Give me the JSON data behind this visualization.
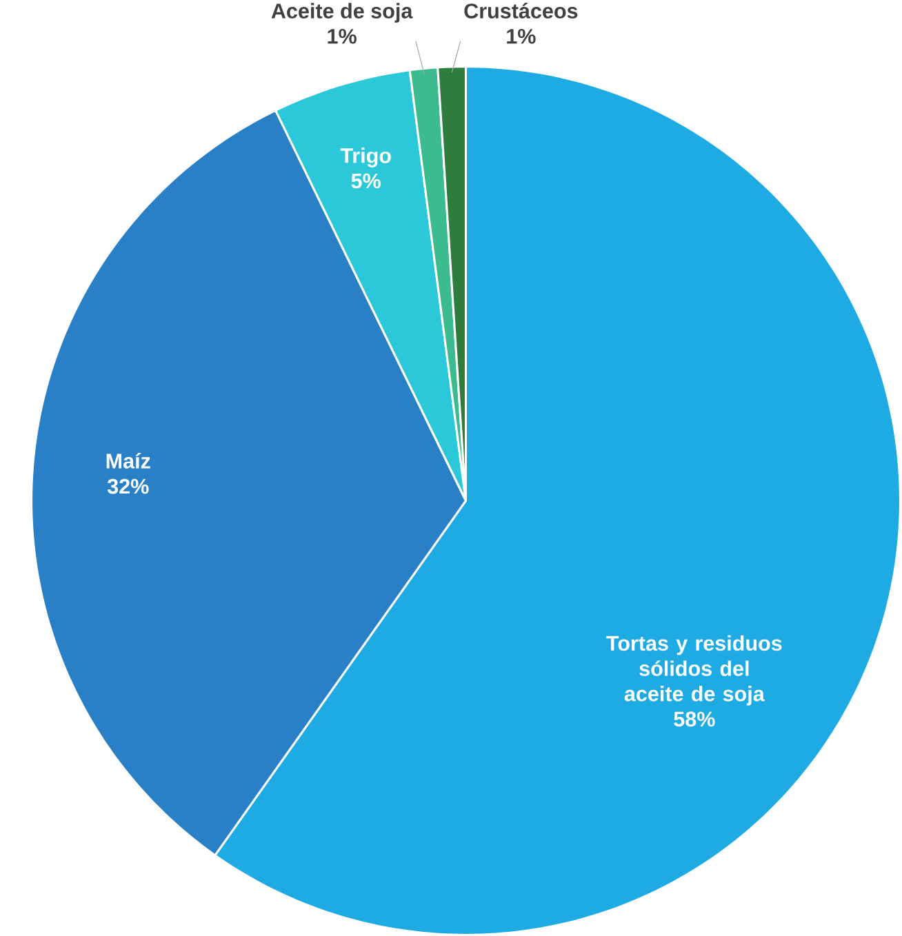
{
  "chart_data": {
    "type": "pie",
    "categories": [
      "Tortas y residuos sólidos del aceite de soja",
      "Maíz",
      "Trigo",
      "Aceite de soja",
      "Crustáceos"
    ],
    "values": [
      58,
      32,
      5,
      1,
      1
    ],
    "value_labels": [
      "58%",
      "32%",
      "5%",
      "1%",
      "1%"
    ],
    "colors": [
      "#1eaae2",
      "#2a80c6",
      "#2bc8d9",
      "#3bbb8e",
      "#2e7d3c"
    ]
  }
}
